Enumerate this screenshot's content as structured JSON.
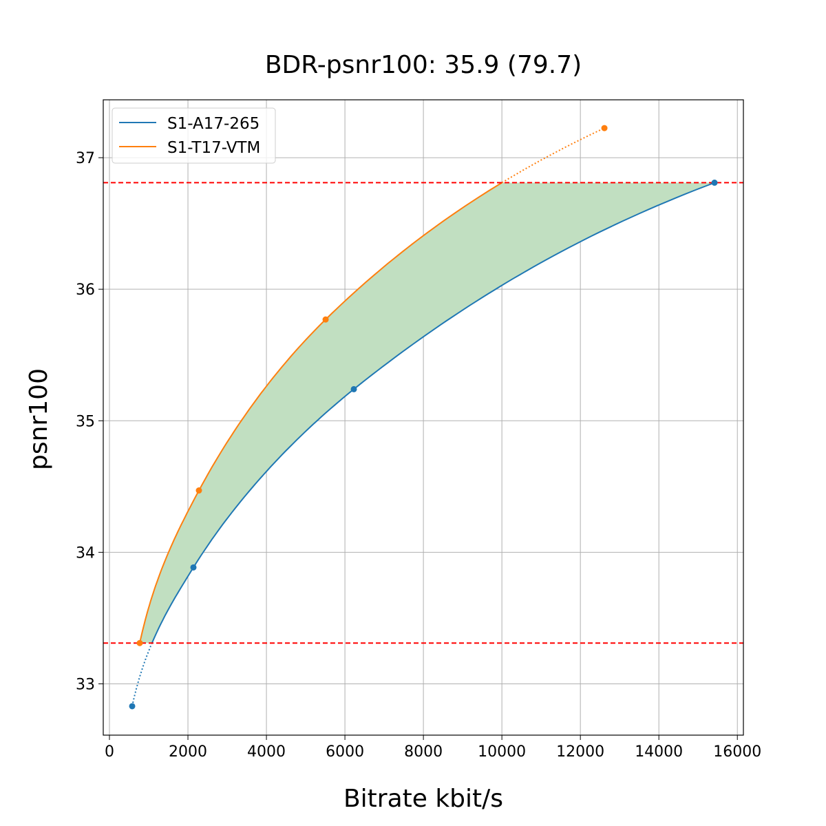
{
  "chart_data": {
    "type": "line",
    "title": "BDR-psnr100: 35.9 (79.7)",
    "xlabel": "Bitrate kbit/s",
    "ylabel": "psnr100",
    "xlim": [
      -158,
      16154
    ],
    "ylim": [
      32.61,
      37.44
    ],
    "xticks": [
      0,
      2000,
      4000,
      6000,
      8000,
      10000,
      12000,
      14000,
      16000
    ],
    "yticks": [
      33,
      34,
      35,
      36,
      37
    ],
    "grid": true,
    "legend_position": "top-left",
    "series": [
      {
        "name": "S1-A17-265",
        "color": "#1f77b4",
        "x": [
          579,
          2140,
          6227,
          15418
        ],
        "y": [
          32.83,
          33.885,
          35.24,
          36.81
        ]
      },
      {
        "name": "S1-T17-VTM",
        "color": "#ff7f0e",
        "x": [
          772,
          2280,
          5508,
          12612
        ],
        "y": [
          33.31,
          34.47,
          35.77,
          37.225
        ]
      }
    ],
    "reference_lines": {
      "y": [
        33.31,
        36.81
      ],
      "color": "#ff0000",
      "style": "dashed"
    },
    "fill_between": {
      "y_range": [
        33.31,
        36.81
      ],
      "color": "#c1dfc1"
    }
  }
}
